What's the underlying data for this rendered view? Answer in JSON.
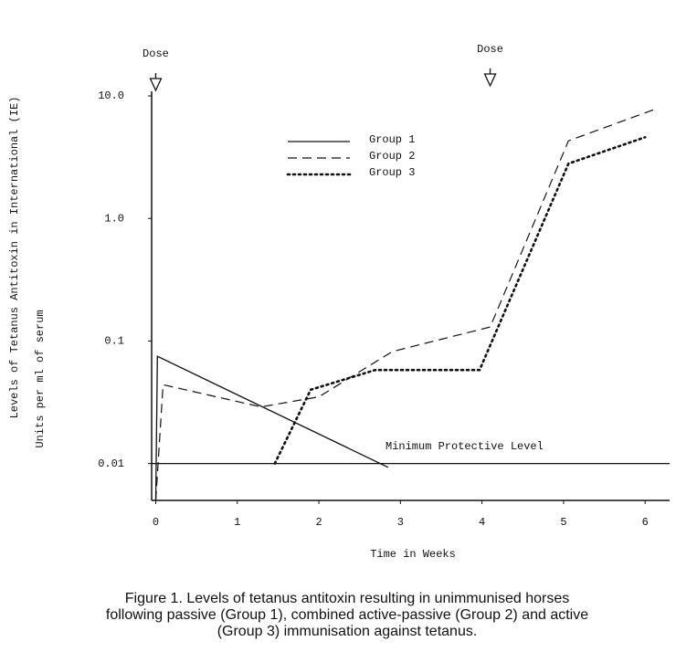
{
  "chart_data": {
    "type": "line",
    "log_y": true,
    "xlim": [
      -0.05,
      6.3
    ],
    "xticks": [
      0,
      1,
      2,
      3,
      4,
      5,
      6
    ],
    "ylim": [
      0.005,
      10.9
    ],
    "yticks": [
      {
        "value": 10,
        "label": "10.0"
      },
      {
        "value": 1,
        "label": "1.0"
      },
      0.1,
      0.01
    ],
    "xlabel": "Time in Weeks",
    "ylabel": [
      "Levels of Tetanus Antitoxin in International (IE)",
      "Units per ml of serum"
    ],
    "series": [
      {
        "name": "Group 1",
        "color": "#111111",
        "dash": "solid",
        "x": [
          0,
          0.02,
          2.85
        ],
        "values": [
          0.005,
          0.075,
          0.0093
        ]
      },
      {
        "name": "Group 2",
        "color": "#111111",
        "dash": "dashed",
        "x": [
          0,
          0.09,
          1.29,
          2.0,
          2.9,
          4.1,
          5.06,
          6.1
        ],
        "values": [
          0.005,
          0.044,
          0.029,
          0.035,
          0.082,
          0.13,
          4.3,
          7.7
        ]
      },
      {
        "name": "Group 3",
        "color": "#111111",
        "dash": "dotted",
        "x": [
          1.46,
          1.9,
          2.69,
          3.97,
          5.06,
          6.0
        ],
        "values": [
          0.01,
          0.04,
          0.058,
          0.058,
          2.8,
          4.6
        ]
      }
    ],
    "reference_line": {
      "value": 0.01,
      "label": "Minimum Protective Level"
    },
    "annotations": [
      {
        "x": 0,
        "label": "Dose"
      },
      {
        "x": 4.1,
        "label": "Dose"
      }
    ],
    "caption": [
      "Figure 1. Levels of tetanus antitoxin resulting in unimmunised horses",
      "following passive (Group 1), combined active-passive (Group 2) and active",
      "(Group 3) immunisation against tetanus."
    ]
  }
}
